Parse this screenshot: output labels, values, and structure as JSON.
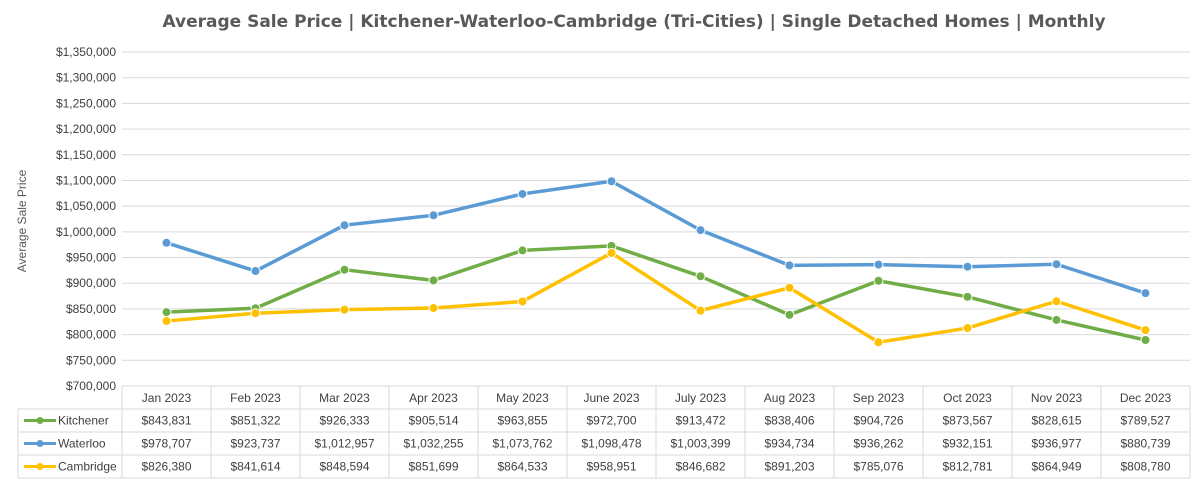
{
  "chart_data": {
    "type": "line",
    "title": "Average Sale Price | Kitchener-Waterloo-Cambridge (Tri-Cities) | Single Detached Homes | Monthly",
    "xlabel": "",
    "ylabel": "Average Sale Price",
    "ylim": [
      700000,
      1350000
    ],
    "ytick_step": 50000,
    "y_ticks": [
      "$700,000",
      "$750,000",
      "$800,000",
      "$850,000",
      "$900,000",
      "$950,000",
      "$1,000,000",
      "$1,050,000",
      "$1,100,000",
      "$1,150,000",
      "$1,200,000",
      "$1,250,000",
      "$1,300,000",
      "$1,350,000"
    ],
    "grid": true,
    "legend": "data-table",
    "categories": [
      "Jan 2023",
      "Feb 2023",
      "Mar 2023",
      "Apr 2023",
      "May 2023",
      "June 2023",
      "July 2023",
      "Aug 2023",
      "Sep 2023",
      "Oct 2023",
      "Nov 2023",
      "Dec 2023"
    ],
    "series": [
      {
        "name": "Kitchener",
        "color": "#70ad47",
        "values": [
          843831,
          851322,
          926333,
          905514,
          963855,
          972700,
          913472,
          838406,
          904726,
          873567,
          828615,
          789527
        ],
        "labels": [
          "$843,831",
          "$851,322",
          "$926,333",
          "$905,514",
          "$963,855",
          "$972,700",
          "$913,472",
          "$838,406",
          "$904,726",
          "$873,567",
          "$828,615",
          "$789,527"
        ]
      },
      {
        "name": "Waterloo",
        "color": "#5b9bd5",
        "values": [
          978707,
          923737,
          1012957,
          1032255,
          1073762,
          1098478,
          1003399,
          934734,
          936262,
          932151,
          936977,
          880739
        ],
        "labels": [
          "$978,707",
          "$923,737",
          "$1,012,957",
          "$1,032,255",
          "$1,073,762",
          "$1,098,478",
          "$1,003,399",
          "$934,734",
          "$936,262",
          "$932,151",
          "$936,977",
          "$880,739"
        ]
      },
      {
        "name": "Cambridge",
        "color": "#ffc000",
        "values": [
          826380,
          841614,
          848594,
          851699,
          864533,
          958951,
          846682,
          891203,
          785076,
          812781,
          864949,
          808780
        ],
        "labels": [
          "$826,380",
          "$841,614",
          "$848,594",
          "$851,699",
          "$864,533",
          "$958,951",
          "$846,682",
          "$891,203",
          "$785,076",
          "$812,781",
          "$864,949",
          "$808,780"
        ]
      }
    ]
  }
}
